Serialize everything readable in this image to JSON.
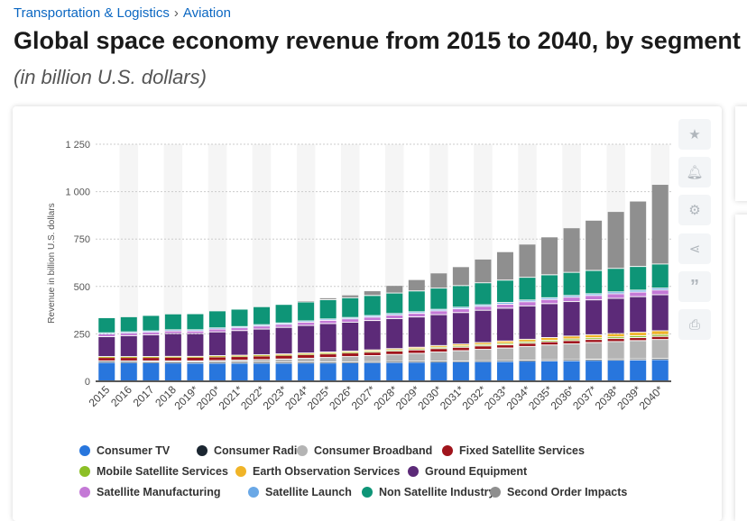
{
  "breadcrumb": [
    "Transportation & Logistics",
    "Aviation"
  ],
  "title": "Global space economy revenue from 2015 to 2040, by segment",
  "subtitle": "(in billion U.S. dollars)",
  "side_buttons": [
    "star-icon",
    "bell-icon",
    "gear-icon",
    "share-icon",
    "quote-icon",
    "print-icon"
  ],
  "chart_data": {
    "type": "bar",
    "stacked": true,
    "title": "",
    "xlabel": "",
    "ylabel": "Revenue in billion U.S. dollars",
    "ylim": [
      0,
      1250
    ],
    "yticks": [
      "0",
      "250",
      "500",
      "750",
      "1 000",
      "1 250"
    ],
    "ytick_values": [
      0,
      250,
      500,
      750,
      1000,
      1250
    ],
    "grid": true,
    "legend": "bottom",
    "categories": [
      "2015",
      "2016",
      "2017",
      "2018",
      "2019*",
      "2020*",
      "2021*",
      "2022*",
      "2023*",
      "2024*",
      "2025*",
      "2026*",
      "2027*",
      "2028*",
      "2029*",
      "2030*",
      "2031*",
      "2032*",
      "2033*",
      "2034*",
      "2035*",
      "2036*",
      "2037*",
      "2038*",
      "2039*",
      "2040*"
    ],
    "series": [
      {
        "name": "Consumer TV",
        "color": "#2876dd",
        "values": [
          97,
          96,
          95,
          94,
          93,
          93,
          93,
          93,
          93,
          94,
          94,
          95,
          96,
          97,
          98,
          99,
          100,
          101,
          102,
          104,
          105,
          106,
          108,
          109,
          110,
          112
        ]
      },
      {
        "name": "Consumer Radio",
        "color": "#1b2631",
        "values": [
          5,
          5,
          5,
          5,
          5,
          5,
          5,
          5,
          5,
          5,
          5,
          5,
          5,
          5,
          5,
          5,
          5,
          5,
          5,
          5,
          6,
          6,
          6,
          6,
          6,
          6
        ]
      },
      {
        "name": "Consumer Broadband",
        "color": "#b4b4b4",
        "values": [
          3,
          4,
          5,
          6,
          7,
          9,
          11,
          14,
          17,
          20,
          24,
          28,
          32,
          37,
          42,
          48,
          54,
          60,
          66,
          72,
          78,
          83,
          88,
          92,
          96,
          100
        ]
      },
      {
        "name": "Fixed Satellite Services",
        "color": "#a0141c",
        "values": [
          18,
          18,
          18,
          19,
          19,
          19,
          19,
          19,
          19,
          19,
          19,
          19,
          18,
          18,
          18,
          18,
          18,
          18,
          17,
          17,
          17,
          17,
          16,
          16,
          16,
          16
        ]
      },
      {
        "name": "Mobile Satellite Services",
        "color": "#8cbf26",
        "values": [
          3,
          3,
          3,
          3,
          3,
          4,
          4,
          4,
          4,
          5,
          5,
          5,
          6,
          6,
          6,
          7,
          7,
          7,
          8,
          8,
          8,
          9,
          9,
          9,
          10,
          10
        ]
      },
      {
        "name": "Earth Observation Services",
        "color": "#f0b428",
        "values": [
          2,
          2,
          2,
          2,
          2,
          3,
          3,
          3,
          4,
          4,
          5,
          5,
          6,
          7,
          8,
          9,
          10,
          11,
          12,
          13,
          14,
          15,
          16,
          17,
          18,
          20
        ]
      },
      {
        "name": "Ground Equipment",
        "color": "#5c2a78",
        "values": [
          105,
          110,
          115,
          120,
          120,
          125,
          130,
          135,
          140,
          145,
          150,
          152,
          155,
          158,
          160,
          163,
          166,
          170,
          173,
          176,
          179,
          182,
          184,
          186,
          188,
          190
        ]
      },
      {
        "name": "Satellite Manufacturing",
        "color": "#c479d6",
        "values": [
          14,
          14,
          14,
          14,
          14,
          15,
          15,
          16,
          16,
          17,
          17,
          18,
          18,
          19,
          19,
          20,
          20,
          21,
          21,
          22,
          22,
          23,
          23,
          24,
          24,
          25
        ]
      },
      {
        "name": "Satellite Launch",
        "color": "#6aa8e6",
        "values": [
          6,
          6,
          6,
          6,
          6,
          6,
          6,
          7,
          7,
          7,
          7,
          7,
          8,
          8,
          8,
          8,
          8,
          8,
          9,
          9,
          9,
          9,
          9,
          10,
          10,
          10
        ]
      },
      {
        "name": "Non Satellite Industry",
        "color": "#0e9577",
        "values": [
          80,
          80,
          82,
          84,
          85,
          90,
          92,
          95,
          98,
          100,
          102,
          104,
          106,
          108,
          110,
          112,
          114,
          116,
          118,
          120,
          121,
          122,
          123,
          124,
          125,
          127
        ]
      },
      {
        "name": "Second Order Impacts",
        "color": "#8f8f8f",
        "values": [
          0,
          0,
          0,
          0,
          0,
          0,
          0,
          0,
          0,
          5,
          10,
          15,
          25,
          40,
          60,
          80,
          100,
          125,
          150,
          175,
          200,
          235,
          265,
          300,
          345,
          420
        ]
      }
    ]
  }
}
